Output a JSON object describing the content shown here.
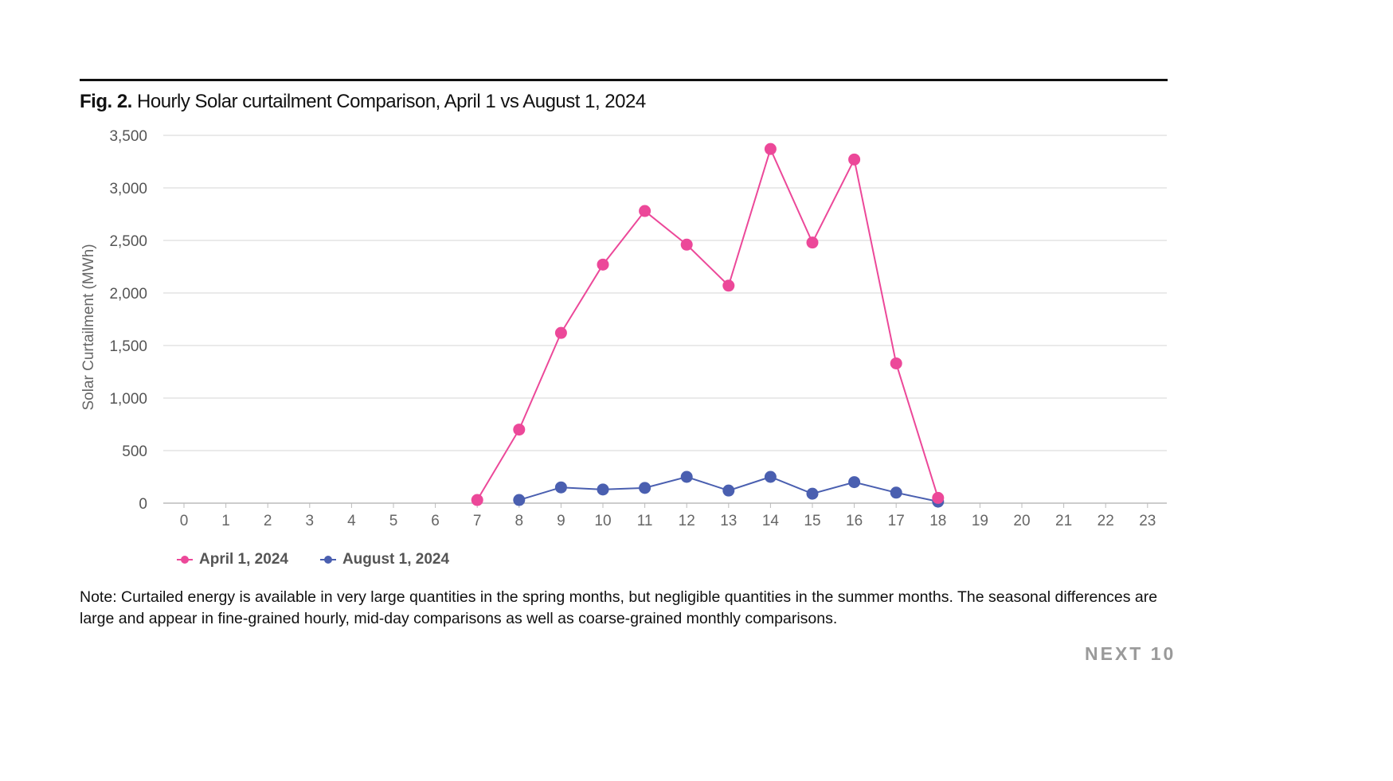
{
  "figure": {
    "label": "Fig. 2.",
    "title": "Hourly Solar curtailment Comparison, April 1 vs August 1, 2024",
    "note": "Note: Curtailed energy is available in very large quantities in the spring months, but negligible quantities in the summer months. The seasonal differences are large and appear in fine-grained hourly, mid-day comparisons as well as coarse-grained monthly comparisons.",
    "brand": "NEXT 10"
  },
  "chart_data": {
    "type": "line",
    "title": "Hourly Solar curtailment Comparison, April 1 vs August 1, 2024",
    "xlabel": "",
    "ylabel": "Solar Curtailment (MWh)",
    "ylim": [
      0,
      3500
    ],
    "yticks": [
      0,
      500,
      1000,
      1500,
      2000,
      2500,
      3000,
      3500
    ],
    "ytick_labels": [
      "0",
      "500",
      "1,000",
      "1,500",
      "2,000",
      "2,500",
      "3,000",
      "3,500"
    ],
    "x": [
      0,
      1,
      2,
      3,
      4,
      5,
      6,
      7,
      8,
      9,
      10,
      11,
      12,
      13,
      14,
      15,
      16,
      17,
      18,
      19,
      20,
      21,
      22,
      23
    ],
    "grid": "horizontal",
    "legend_position": "bottom-left",
    "series": [
      {
        "name": "April 1, 2024",
        "color": "#ec4899",
        "points": [
          [
            7,
            30
          ],
          [
            8,
            700
          ],
          [
            9,
            1620
          ],
          [
            10,
            2270
          ],
          [
            11,
            2780
          ],
          [
            12,
            2460
          ],
          [
            13,
            2070
          ],
          [
            14,
            3370
          ],
          [
            15,
            2480
          ],
          [
            16,
            3270
          ],
          [
            17,
            1330
          ],
          [
            18,
            50
          ]
        ]
      },
      {
        "name": "August 1, 2024",
        "color": "#4a5fb0",
        "points": [
          [
            8,
            30
          ],
          [
            9,
            150
          ],
          [
            10,
            130
          ],
          [
            11,
            145
          ],
          [
            12,
            250
          ],
          [
            13,
            120
          ],
          [
            14,
            250
          ],
          [
            15,
            90
          ],
          [
            16,
            200
          ],
          [
            17,
            100
          ],
          [
            18,
            15
          ]
        ]
      }
    ]
  }
}
